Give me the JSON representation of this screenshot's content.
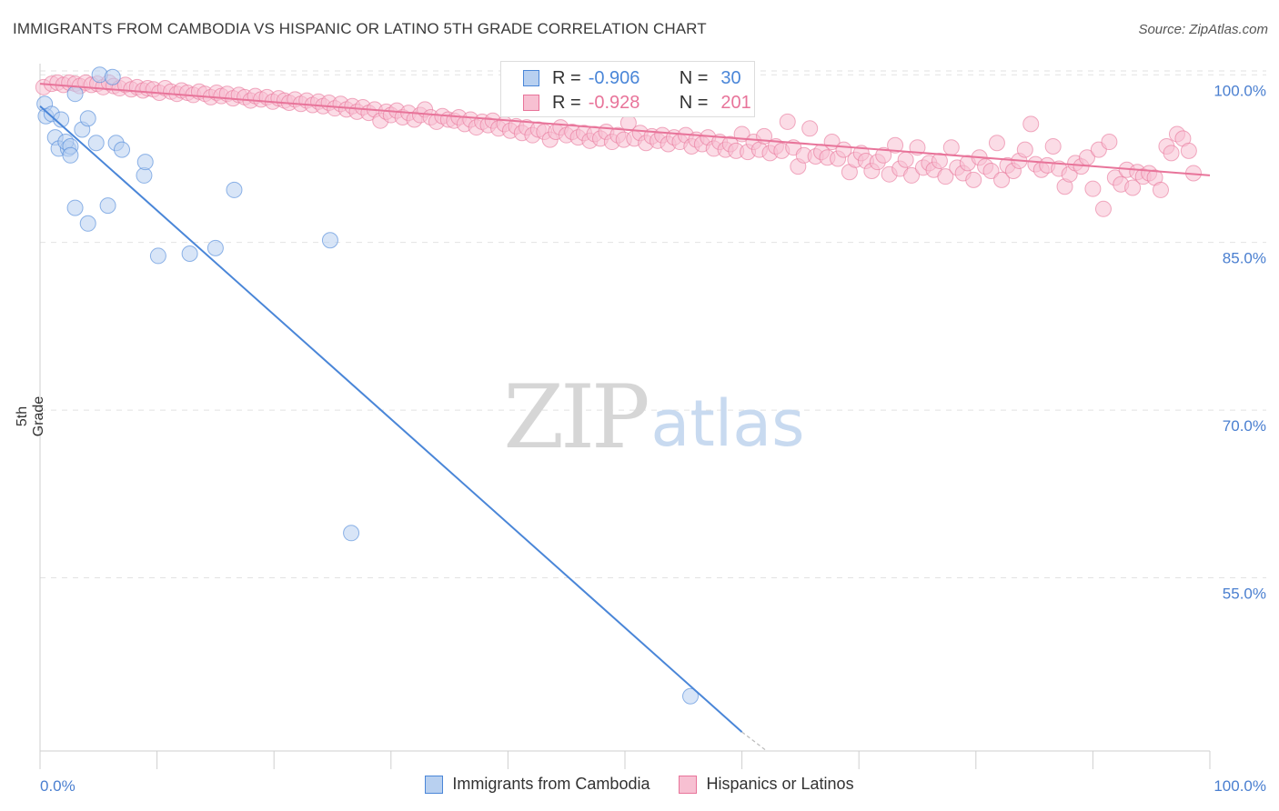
{
  "header": {
    "title": "IMMIGRANTS FROM CAMBODIA VS HISPANIC OR LATINO 5TH GRADE CORRELATION CHART",
    "source": "Source: ZipAtlas.com"
  },
  "watermark": {
    "zip": "ZIP",
    "atlas": "atlas"
  },
  "legend": {
    "r_label": "R =",
    "n_label": "N =",
    "rows": [
      {
        "r": "-0.906",
        "n": "30",
        "color": "#4a86d8",
        "fill": "#b8d0f0"
      },
      {
        "r": "-0.928",
        "n": "201",
        "color": "#e8749a",
        "fill": "#f7c0d2"
      }
    ]
  },
  "bottom_legend": {
    "items": [
      {
        "label": "Immigrants from Cambodia",
        "color": "#4a86d8",
        "fill": "#b8d0f0"
      },
      {
        "label": "Hispanics or Latinos",
        "color": "#e8749a",
        "fill": "#f7c0d2"
      }
    ]
  },
  "chart_data": {
    "type": "scatter",
    "title": "IMMIGRANTS FROM CAMBODIA VS HISPANIC OR LATINO 5TH GRADE CORRELATION CHART",
    "xlabel": "",
    "ylabel": "5th Grade",
    "xlim": [
      0,
      100
    ],
    "ylim": [
      39.5,
      101
    ],
    "x_tick_labels": [
      "0.0%",
      "100.0%"
    ],
    "y_ticks": [
      100,
      85,
      70,
      55
    ],
    "y_tick_labels": [
      "100.0%",
      "85.0%",
      "70.0%",
      "55.0%"
    ],
    "grid": true,
    "series": [
      {
        "name": "Immigrants from Cambodia",
        "color": "#4a86d8",
        "r": -0.906,
        "n": 30,
        "trend": {
          "x": [
            0,
            60
          ],
          "y": [
            97.2,
            41.2
          ],
          "dashed_to": {
            "x": 62,
            "y": 39.6
          }
        },
        "points": [
          [
            0.4,
            97.4
          ],
          [
            0.5,
            96.3
          ],
          [
            1.0,
            96.5
          ],
          [
            1.8,
            96.0
          ],
          [
            1.3,
            94.4
          ],
          [
            1.6,
            93.4
          ],
          [
            2.4,
            93.4
          ],
          [
            2.2,
            94.0
          ],
          [
            2.6,
            93.6
          ],
          [
            2.6,
            92.8
          ],
          [
            3.0,
            98.3
          ],
          [
            3.6,
            95.1
          ],
          [
            4.1,
            96.1
          ],
          [
            4.8,
            93.9
          ],
          [
            5.1,
            100.0
          ],
          [
            6.2,
            99.8
          ],
          [
            6.5,
            93.9
          ],
          [
            7.0,
            93.3
          ],
          [
            3.0,
            88.1
          ],
          [
            4.1,
            86.7
          ],
          [
            5.8,
            88.3
          ],
          [
            8.9,
            91.0
          ],
          [
            9.0,
            92.2
          ],
          [
            10.1,
            83.8
          ],
          [
            12.8,
            84.0
          ],
          [
            15.0,
            84.5
          ],
          [
            16.6,
            89.7
          ],
          [
            24.8,
            85.2
          ],
          [
            26.6,
            59.0
          ],
          [
            55.6,
            44.4
          ]
        ]
      },
      {
        "name": "Hispanics or Latinos",
        "color": "#e8749a",
        "r": -0.928,
        "n": 201,
        "trend": {
          "x": [
            0,
            100
          ],
          "y": [
            99.2,
            91.0
          ]
        },
        "points": [
          [
            0.3,
            98.9
          ],
          [
            1.0,
            99.2
          ],
          [
            1.5,
            99.3
          ],
          [
            2.0,
            99.1
          ],
          [
            2.5,
            99.3
          ],
          [
            3.0,
            99.2
          ],
          [
            3.4,
            99.0
          ],
          [
            3.9,
            99.3
          ],
          [
            4.4,
            99.1
          ],
          [
            4.9,
            99.2
          ],
          [
            5.4,
            98.9
          ],
          [
            5.9,
            99.3
          ],
          [
            6.3,
            99.0
          ],
          [
            6.8,
            98.8
          ],
          [
            7.3,
            99.1
          ],
          [
            7.8,
            98.7
          ],
          [
            8.3,
            98.9
          ],
          [
            8.8,
            98.6
          ],
          [
            9.2,
            98.8
          ],
          [
            9.7,
            98.7
          ],
          [
            10.2,
            98.4
          ],
          [
            10.7,
            98.8
          ],
          [
            11.2,
            98.5
          ],
          [
            11.7,
            98.3
          ],
          [
            12.1,
            98.6
          ],
          [
            12.6,
            98.4
          ],
          [
            13.1,
            98.2
          ],
          [
            13.6,
            98.5
          ],
          [
            14.1,
            98.3
          ],
          [
            14.6,
            98.0
          ],
          [
            15.1,
            98.4
          ],
          [
            15.5,
            98.1
          ],
          [
            16.0,
            98.3
          ],
          [
            16.5,
            97.9
          ],
          [
            17.0,
            98.2
          ],
          [
            17.5,
            98.0
          ],
          [
            18.0,
            97.7
          ],
          [
            18.4,
            98.1
          ],
          [
            18.9,
            97.8
          ],
          [
            19.4,
            98.0
          ],
          [
            19.9,
            97.6
          ],
          [
            20.4,
            97.9
          ],
          [
            20.9,
            97.7
          ],
          [
            21.3,
            97.5
          ],
          [
            21.8,
            97.8
          ],
          [
            22.3,
            97.4
          ],
          [
            22.8,
            97.7
          ],
          [
            23.3,
            97.3
          ],
          [
            23.8,
            97.6
          ],
          [
            24.2,
            97.2
          ],
          [
            24.7,
            97.5
          ],
          [
            25.2,
            97.0
          ],
          [
            25.7,
            97.4
          ],
          [
            26.2,
            96.9
          ],
          [
            26.7,
            97.2
          ],
          [
            27.1,
            96.7
          ],
          [
            27.6,
            97.1
          ],
          [
            28.1,
            96.6
          ],
          [
            28.6,
            96.9
          ],
          [
            29.1,
            95.9
          ],
          [
            29.6,
            96.7
          ],
          [
            30.0,
            96.4
          ],
          [
            30.5,
            96.8
          ],
          [
            31.0,
            96.2
          ],
          [
            31.5,
            96.6
          ],
          [
            32.0,
            96.0
          ],
          [
            32.5,
            96.4
          ],
          [
            32.9,
            96.9
          ],
          [
            33.4,
            96.2
          ],
          [
            33.9,
            95.8
          ],
          [
            34.4,
            96.3
          ],
          [
            34.9,
            96.0
          ],
          [
            35.4,
            95.9
          ],
          [
            35.8,
            96.2
          ],
          [
            36.3,
            95.6
          ],
          [
            36.8,
            96.0
          ],
          [
            37.3,
            95.3
          ],
          [
            37.8,
            95.8
          ],
          [
            38.3,
            95.5
          ],
          [
            38.7,
            95.9
          ],
          [
            39.2,
            95.2
          ],
          [
            39.7,
            95.6
          ],
          [
            40.2,
            95.0
          ],
          [
            40.7,
            95.4
          ],
          [
            41.2,
            94.8
          ],
          [
            41.6,
            95.3
          ],
          [
            42.1,
            94.6
          ],
          [
            42.6,
            95.1
          ],
          [
            43.1,
            94.9
          ],
          [
            43.6,
            94.2
          ],
          [
            44.1,
            94.9
          ],
          [
            44.5,
            95.3
          ],
          [
            45.0,
            94.6
          ],
          [
            45.5,
            94.9
          ],
          [
            46.0,
            94.4
          ],
          [
            46.5,
            94.8
          ],
          [
            47.0,
            94.1
          ],
          [
            47.4,
            94.7
          ],
          [
            47.9,
            94.3
          ],
          [
            48.4,
            94.9
          ],
          [
            48.9,
            94.0
          ],
          [
            49.4,
            94.6
          ],
          [
            49.9,
            94.2
          ],
          [
            50.3,
            95.7
          ],
          [
            50.8,
            94.3
          ],
          [
            51.3,
            94.8
          ],
          [
            51.8,
            93.9
          ],
          [
            52.3,
            94.5
          ],
          [
            52.8,
            94.1
          ],
          [
            53.2,
            94.6
          ],
          [
            53.7,
            93.8
          ],
          [
            54.2,
            94.4
          ],
          [
            54.7,
            94.0
          ],
          [
            55.2,
            94.6
          ],
          [
            55.7,
            93.6
          ],
          [
            56.1,
            94.2
          ],
          [
            56.6,
            93.8
          ],
          [
            57.1,
            94.4
          ],
          [
            57.6,
            93.4
          ],
          [
            58.1,
            94.0
          ],
          [
            58.6,
            93.3
          ],
          [
            59.0,
            93.8
          ],
          [
            59.5,
            93.2
          ],
          [
            60.0,
            94.7
          ],
          [
            60.5,
            93.1
          ],
          [
            61.0,
            94.0
          ],
          [
            61.5,
            93.3
          ],
          [
            61.9,
            94.5
          ],
          [
            62.4,
            93.0
          ],
          [
            62.9,
            93.6
          ],
          [
            63.4,
            93.2
          ],
          [
            63.9,
            95.8
          ],
          [
            64.4,
            93.5
          ],
          [
            64.8,
            91.8
          ],
          [
            65.3,
            92.8
          ],
          [
            65.8,
            95.2
          ],
          [
            66.3,
            92.7
          ],
          [
            66.8,
            93.1
          ],
          [
            67.3,
            92.6
          ],
          [
            67.7,
            94.0
          ],
          [
            68.2,
            92.5
          ],
          [
            68.7,
            93.3
          ],
          [
            69.2,
            91.3
          ],
          [
            69.7,
            92.4
          ],
          [
            70.2,
            93.0
          ],
          [
            70.6,
            92.3
          ],
          [
            71.1,
            91.4
          ],
          [
            71.6,
            92.2
          ],
          [
            72.1,
            92.8
          ],
          [
            72.6,
            91.1
          ],
          [
            73.1,
            93.7
          ],
          [
            73.5,
            91.6
          ],
          [
            74.0,
            92.4
          ],
          [
            74.5,
            91.0
          ],
          [
            75.0,
            93.5
          ],
          [
            75.5,
            91.7
          ],
          [
            76.0,
            92.1
          ],
          [
            76.4,
            91.5
          ],
          [
            76.9,
            92.3
          ],
          [
            77.4,
            90.9
          ],
          [
            77.9,
            93.5
          ],
          [
            78.4,
            91.7
          ],
          [
            78.9,
            91.2
          ],
          [
            79.3,
            92.1
          ],
          [
            79.8,
            90.6
          ],
          [
            80.3,
            92.6
          ],
          [
            80.8,
            91.8
          ],
          [
            81.3,
            91.4
          ],
          [
            81.8,
            93.9
          ],
          [
            82.2,
            90.6
          ],
          [
            82.7,
            91.9
          ],
          [
            83.2,
            91.4
          ],
          [
            83.7,
            92.3
          ],
          [
            84.2,
            93.3
          ],
          [
            84.7,
            95.6
          ],
          [
            85.1,
            92.0
          ],
          [
            85.6,
            91.5
          ],
          [
            86.1,
            91.9
          ],
          [
            86.6,
            93.6
          ],
          [
            87.1,
            91.6
          ],
          [
            87.6,
            90.0
          ],
          [
            88.0,
            91.1
          ],
          [
            88.5,
            92.1
          ],
          [
            89.0,
            91.8
          ],
          [
            89.5,
            92.6
          ],
          [
            90.0,
            89.8
          ],
          [
            90.5,
            93.3
          ],
          [
            90.9,
            88.0
          ],
          [
            91.4,
            94.0
          ],
          [
            91.9,
            90.8
          ],
          [
            92.4,
            90.2
          ],
          [
            92.9,
            91.5
          ],
          [
            93.4,
            89.9
          ],
          [
            93.8,
            91.3
          ],
          [
            94.3,
            90.9
          ],
          [
            94.8,
            91.2
          ],
          [
            95.3,
            90.8
          ],
          [
            95.8,
            89.7
          ],
          [
            96.3,
            93.6
          ],
          [
            96.7,
            93.0
          ],
          [
            97.2,
            94.7
          ],
          [
            97.7,
            94.3
          ],
          [
            98.2,
            93.2
          ],
          [
            98.6,
            91.2
          ]
        ]
      }
    ]
  }
}
